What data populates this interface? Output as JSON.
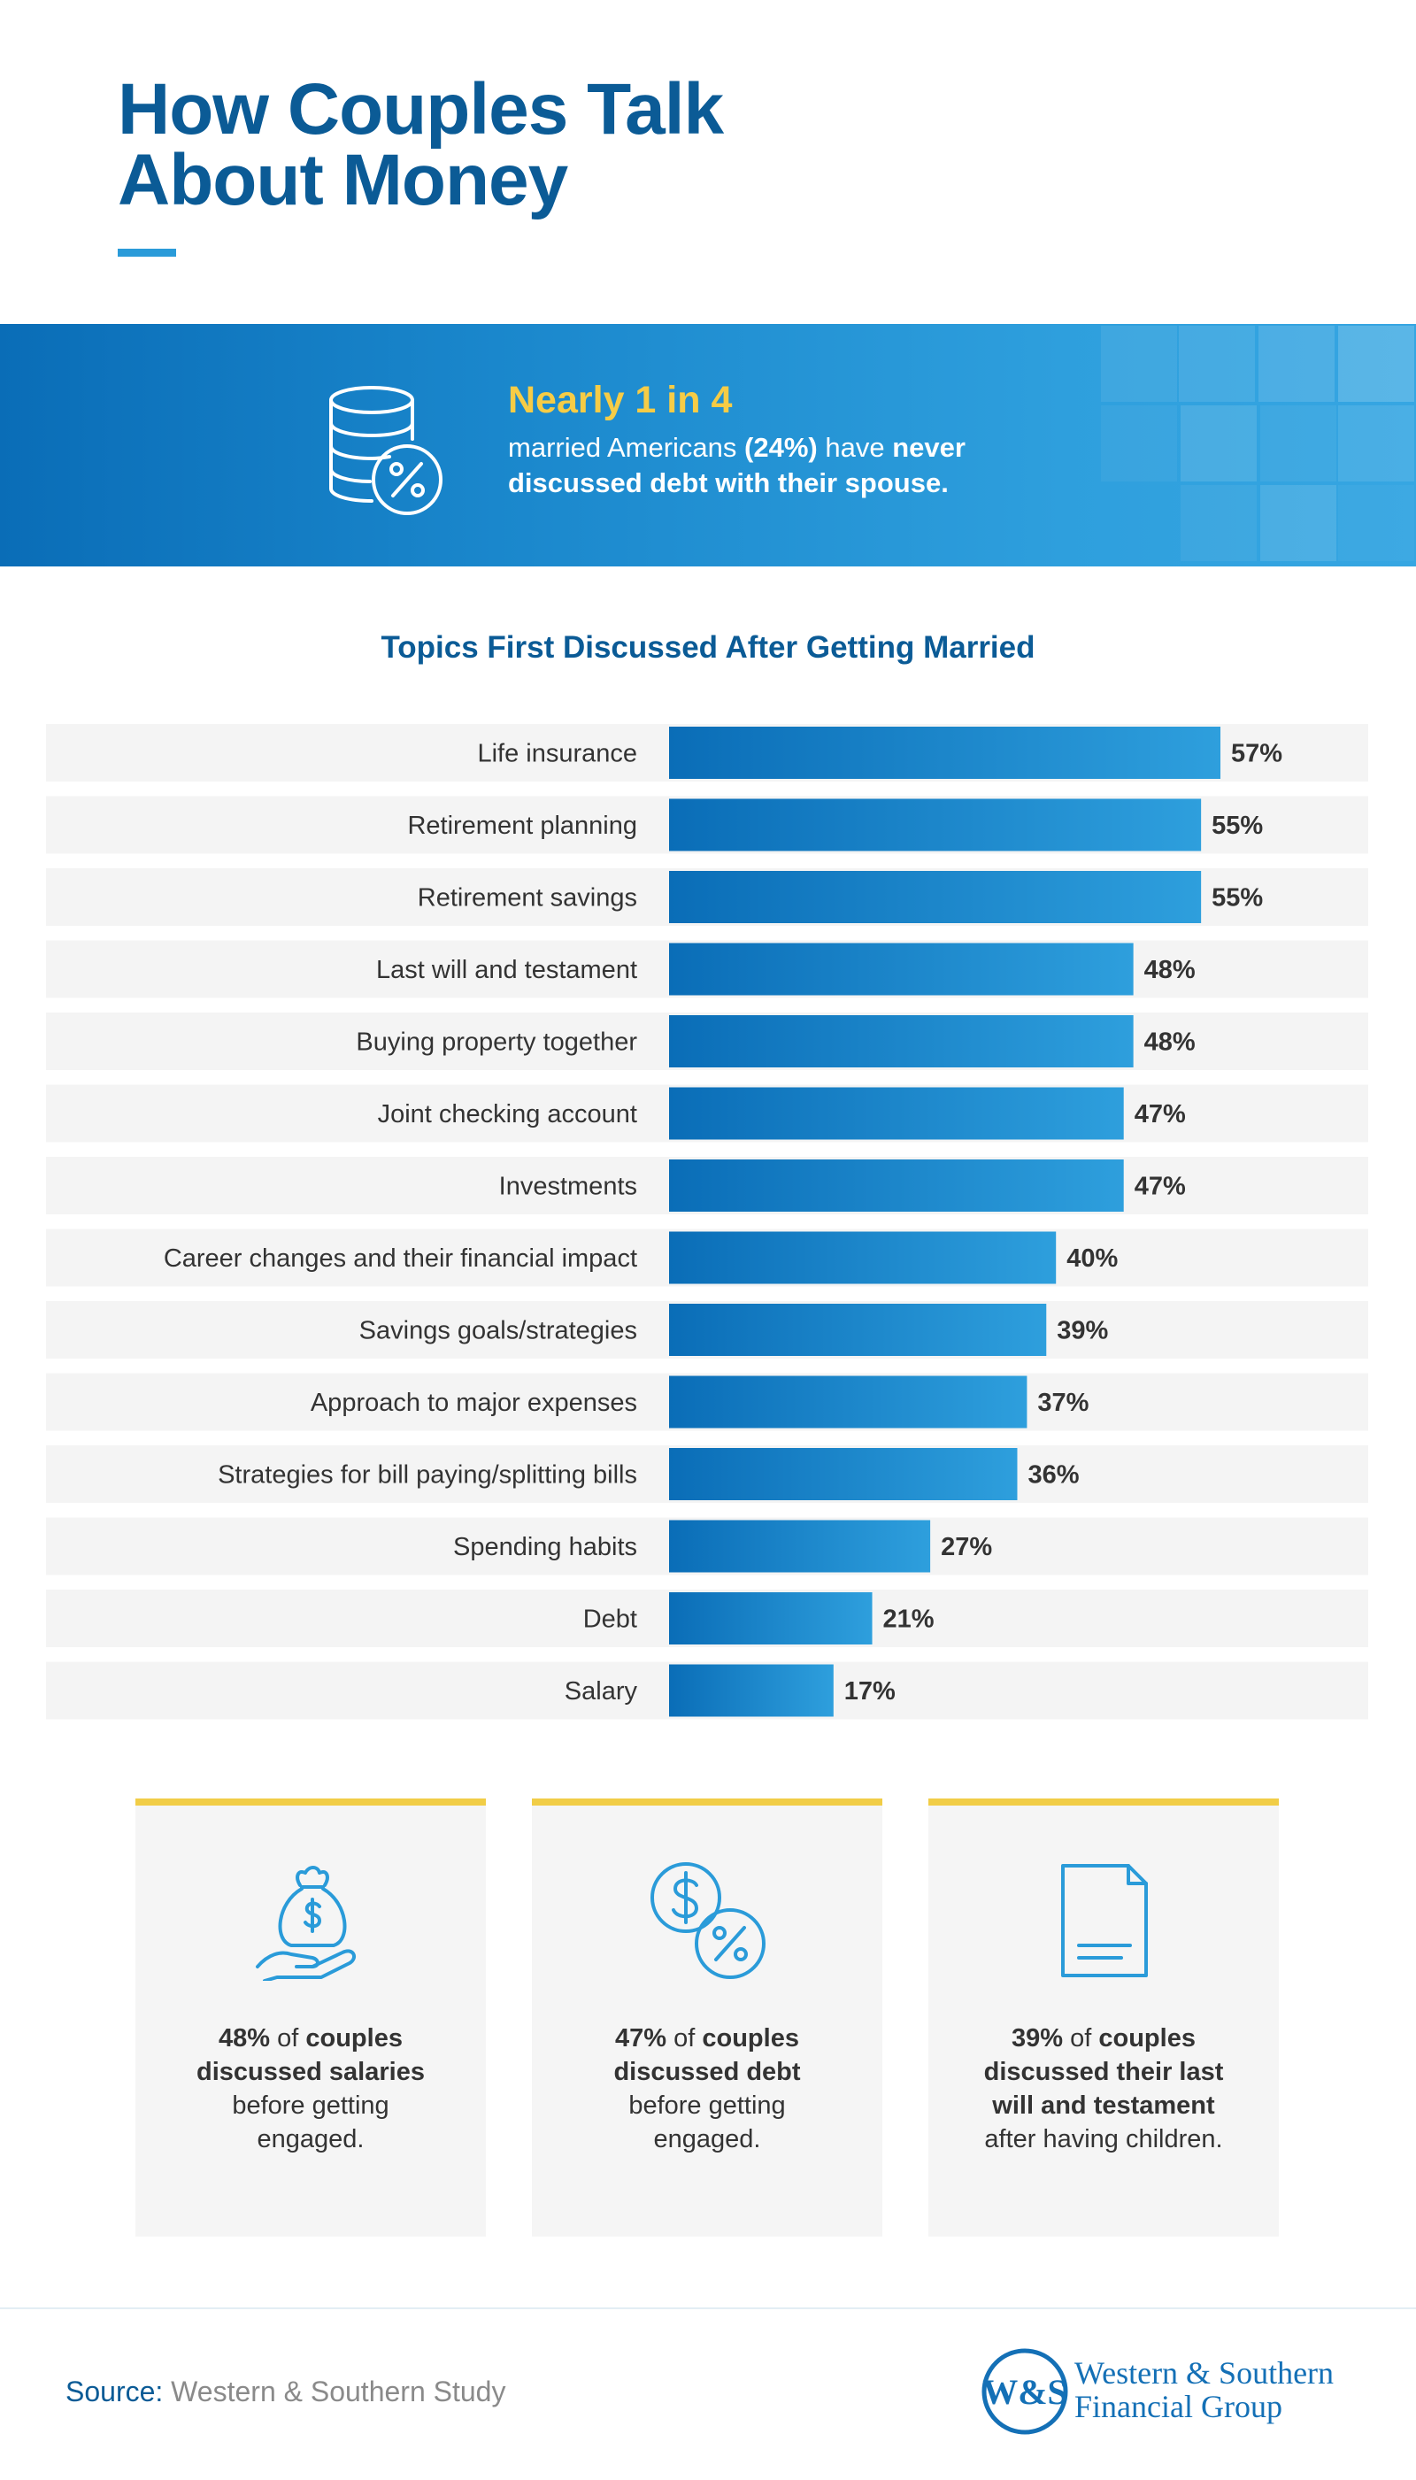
{
  "title": {
    "line1": "How Couples Talk",
    "line2": "About Money"
  },
  "banner": {
    "icon": "coins-percent-icon",
    "headline": "Nearly 1 in 4",
    "body_pre": "married Americans ",
    "body_pct": "(24%)",
    "body_mid": " have ",
    "body_never": "never",
    "body_end": "discussed debt with their spouse."
  },
  "chart_data": {
    "type": "bar",
    "orientation": "horizontal",
    "title": "Topics First Discussed After Getting Married",
    "categories": [
      "Life insurance",
      "Retirement planning",
      "Retirement savings",
      "Last will and testament",
      "Buying property together",
      "Joint checking account",
      "Investments",
      "Career changes and their financial impact",
      "Savings goals/strategies",
      "Approach to major expenses",
      "Strategies for bill paying/splitting bills",
      "Spending habits",
      "Debt",
      "Salary"
    ],
    "values": [
      57,
      55,
      55,
      48,
      48,
      47,
      47,
      40,
      39,
      37,
      36,
      27,
      21,
      17
    ],
    "value_labels": [
      "57%",
      "55%",
      "55%",
      "48%",
      "48%",
      "47%",
      "47%",
      "40%",
      "39%",
      "37%",
      "36%",
      "27%",
      "21%",
      "17%"
    ],
    "xlim": [
      0,
      100
    ],
    "grid": false,
    "legend": "none",
    "bar_color": "#0a6db7"
  },
  "cards": [
    {
      "icon": "money-bag-hand-icon",
      "pct": "48%",
      "of": " of ",
      "bold1": "couples",
      "bold2": "discussed salaries",
      "rest1": "before getting",
      "rest2": "engaged."
    },
    {
      "icon": "dollar-percent-coins-icon",
      "pct": "47%",
      "of": " of ",
      "bold1": "couples",
      "bold2": "discussed debt",
      "rest1": "before getting",
      "rest2": "engaged."
    },
    {
      "icon": "document-icon",
      "pct": "39%",
      "of": " of ",
      "bold1": "couples",
      "bold2": "discussed their last",
      "bold3": "will and testament",
      "rest1": "after having children."
    }
  ],
  "footer": {
    "source_label": "Source:",
    "source_value": "Western & Southern Study",
    "logo_line1": "Western & Southern",
    "logo_line2": "Financial Group"
  },
  "colors": {
    "primary": "#0b5b96",
    "accent_yellow": "#f1cd47",
    "icon_blue": "#2a9bd9"
  }
}
